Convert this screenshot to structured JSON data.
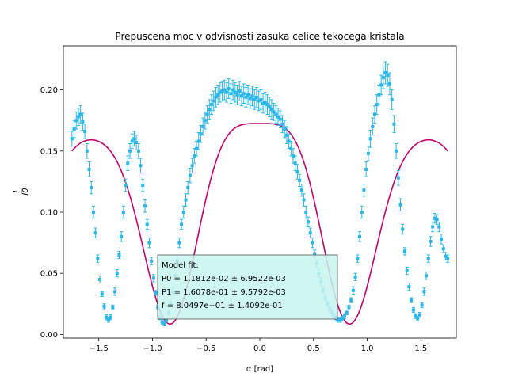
{
  "chart_data": {
    "type": "scatter",
    "title": "Prepuscena moc v odvisnosti zasuka celice tekocega kristala",
    "xlabel": "α [rad]",
    "ylabel_num": "I",
    "ylabel_den": "I0",
    "xlim": [
      -1.83,
      1.83
    ],
    "ylim": [
      -0.003,
      0.236
    ],
    "xticks": [
      -1.5,
      -1.0,
      -0.5,
      0.0,
      0.5,
      1.0,
      1.5
    ],
    "xtick_labels": [
      "−1.5",
      "−1.0",
      "−0.5",
      "0.0",
      "0.5",
      "1.0",
      "1.5"
    ],
    "yticks": [
      0.0,
      0.05,
      0.1,
      0.15,
      0.2
    ],
    "ytick_labels": [
      "0.00",
      "0.05",
      "0.10",
      "0.15",
      "0.20"
    ],
    "grid": false,
    "colors": {
      "data": "#29b6e8",
      "model": "#c2006b",
      "annotation_bg": "#c8f4f0"
    },
    "measurements": {
      "name": "measurements",
      "points": [
        [
          -1.75,
          0.16,
          0.006
        ],
        [
          -1.73,
          0.168,
          0.007
        ],
        [
          -1.71,
          0.175,
          0.007
        ],
        [
          -1.69,
          0.178,
          0.007
        ],
        [
          -1.67,
          0.18,
          0.007
        ],
        [
          -1.65,
          0.174,
          0.007
        ],
        [
          -1.63,
          0.166,
          0.006
        ],
        [
          -1.61,
          0.15,
          0.006
        ],
        [
          -1.59,
          0.135,
          0.006
        ],
        [
          -1.57,
          0.12,
          0.005
        ],
        [
          -1.55,
          0.1,
          0.005
        ],
        [
          -1.53,
          0.083,
          0.004
        ],
        [
          -1.51,
          0.062,
          0.003
        ],
        [
          -1.49,
          0.045,
          0.003
        ],
        [
          -1.47,
          0.033,
          0.002
        ],
        [
          -1.45,
          0.023,
          0.002
        ],
        [
          -1.43,
          0.014,
          0.002
        ],
        [
          -1.41,
          0.012,
          0.002
        ],
        [
          -1.39,
          0.014,
          0.002
        ],
        [
          -1.37,
          0.022,
          0.002
        ],
        [
          -1.35,
          0.035,
          0.003
        ],
        [
          -1.33,
          0.05,
          0.003
        ],
        [
          -1.31,
          0.065,
          0.003
        ],
        [
          -1.29,
          0.08,
          0.004
        ],
        [
          -1.27,
          0.1,
          0.005
        ],
        [
          -1.25,
          0.122,
          0.005
        ],
        [
          -1.23,
          0.14,
          0.006
        ],
        [
          -1.21,
          0.15,
          0.006
        ],
        [
          -1.19,
          0.158,
          0.006
        ],
        [
          -1.17,
          0.16,
          0.006
        ],
        [
          -1.15,
          0.157,
          0.006
        ],
        [
          -1.13,
          0.15,
          0.006
        ],
        [
          -1.11,
          0.138,
          0.006
        ],
        [
          -1.09,
          0.122,
          0.005
        ],
        [
          -1.07,
          0.105,
          0.005
        ],
        [
          -1.05,
          0.09,
          0.004
        ],
        [
          -1.03,
          0.075,
          0.004
        ],
        [
          -1.01,
          0.06,
          0.003
        ],
        [
          -0.99,
          0.046,
          0.003
        ],
        [
          -0.97,
          0.034,
          0.002
        ],
        [
          -0.95,
          0.022,
          0.002
        ],
        [
          -0.93,
          0.014,
          0.002
        ],
        [
          -0.91,
          0.01,
          0.002
        ],
        [
          -0.89,
          0.009,
          0.002
        ],
        [
          -0.87,
          0.012,
          0.002
        ],
        [
          -0.85,
          0.018,
          0.002
        ],
        [
          -0.83,
          0.025,
          0.002
        ],
        [
          -0.81,
          0.035,
          0.003
        ],
        [
          -0.79,
          0.048,
          0.003
        ],
        [
          -0.77,
          0.06,
          0.003
        ],
        [
          -0.75,
          0.075,
          0.004
        ],
        [
          -0.73,
          0.09,
          0.004
        ],
        [
          -0.71,
          0.1,
          0.005
        ],
        [
          -0.69,
          0.11,
          0.005
        ],
        [
          -0.67,
          0.12,
          0.005
        ],
        [
          -0.65,
          0.13,
          0.006
        ],
        [
          -0.63,
          0.138,
          0.006
        ],
        [
          -0.61,
          0.146,
          0.006
        ],
        [
          -0.59,
          0.152,
          0.006
        ],
        [
          -0.57,
          0.158,
          0.007
        ],
        [
          -0.55,
          0.164,
          0.007
        ],
        [
          -0.53,
          0.17,
          0.007
        ],
        [
          -0.51,
          0.175,
          0.007
        ],
        [
          -0.49,
          0.18,
          0.007
        ],
        [
          -0.47,
          0.184,
          0.008
        ],
        [
          -0.45,
          0.188,
          0.008
        ],
        [
          -0.43,
          0.191,
          0.008
        ],
        [
          -0.41,
          0.194,
          0.008
        ],
        [
          -0.39,
          0.196,
          0.008
        ],
        [
          -0.37,
          0.198,
          0.008
        ],
        [
          -0.35,
          0.199,
          0.008
        ],
        [
          -0.33,
          0.2,
          0.008
        ],
        [
          -0.31,
          0.198,
          0.008
        ],
        [
          -0.29,
          0.201,
          0.008
        ],
        [
          -0.27,
          0.197,
          0.008
        ],
        [
          -0.25,
          0.2,
          0.008
        ],
        [
          -0.23,
          0.198,
          0.008
        ],
        [
          -0.21,
          0.196,
          0.008
        ],
        [
          -0.19,
          0.199,
          0.008
        ],
        [
          -0.17,
          0.195,
          0.008
        ],
        [
          -0.15,
          0.197,
          0.008
        ],
        [
          -0.13,
          0.194,
          0.008
        ],
        [
          -0.11,
          0.196,
          0.008
        ],
        [
          -0.09,
          0.193,
          0.008
        ],
        [
          -0.07,
          0.195,
          0.008
        ],
        [
          -0.05,
          0.192,
          0.008
        ],
        [
          -0.03,
          0.194,
          0.008
        ],
        [
          -0.01,
          0.191,
          0.008
        ],
        [
          0.01,
          0.192,
          0.008
        ],
        [
          0.03,
          0.189,
          0.008
        ],
        [
          0.05,
          0.19,
          0.008
        ],
        [
          0.07,
          0.188,
          0.008
        ],
        [
          0.09,
          0.186,
          0.008
        ],
        [
          0.11,
          0.184,
          0.008
        ],
        [
          0.13,
          0.182,
          0.007
        ],
        [
          0.15,
          0.18,
          0.007
        ],
        [
          0.17,
          0.178,
          0.007
        ],
        [
          0.19,
          0.176,
          0.007
        ],
        [
          0.21,
          0.172,
          0.007
        ],
        [
          0.23,
          0.168,
          0.007
        ],
        [
          0.25,
          0.163,
          0.007
        ],
        [
          0.27,
          0.158,
          0.006
        ],
        [
          0.29,
          0.152,
          0.006
        ],
        [
          0.31,
          0.146,
          0.006
        ],
        [
          0.33,
          0.14,
          0.006
        ],
        [
          0.35,
          0.133,
          0.006
        ],
        [
          0.37,
          0.126,
          0.005
        ],
        [
          0.39,
          0.118,
          0.005
        ],
        [
          0.41,
          0.11,
          0.005
        ],
        [
          0.43,
          0.1,
          0.005
        ],
        [
          0.45,
          0.092,
          0.004
        ],
        [
          0.47,
          0.083,
          0.004
        ],
        [
          0.49,
          0.075,
          0.004
        ],
        [
          0.51,
          0.066,
          0.003
        ],
        [
          0.53,
          0.058,
          0.003
        ],
        [
          0.55,
          0.05,
          0.003
        ],
        [
          0.57,
          0.043,
          0.003
        ],
        [
          0.59,
          0.036,
          0.002
        ],
        [
          0.61,
          0.03,
          0.002
        ],
        [
          0.63,
          0.025,
          0.002
        ],
        [
          0.65,
          0.021,
          0.002
        ],
        [
          0.67,
          0.018,
          0.002
        ],
        [
          0.69,
          0.015,
          0.002
        ],
        [
          0.71,
          0.013,
          0.002
        ],
        [
          0.73,
          0.012,
          0.002
        ],
        [
          0.75,
          0.012,
          0.002
        ],
        [
          0.77,
          0.013,
          0.002
        ],
        [
          0.79,
          0.015,
          0.002
        ],
        [
          0.81,
          0.018,
          0.002
        ],
        [
          0.83,
          0.022,
          0.002
        ],
        [
          0.85,
          0.028,
          0.002
        ],
        [
          0.87,
          0.036,
          0.003
        ],
        [
          0.89,
          0.047,
          0.003
        ],
        [
          0.91,
          0.062,
          0.003
        ],
        [
          0.93,
          0.08,
          0.004
        ],
        [
          0.95,
          0.1,
          0.005
        ],
        [
          0.97,
          0.118,
          0.005
        ],
        [
          0.99,
          0.135,
          0.006
        ],
        [
          1.01,
          0.148,
          0.006
        ],
        [
          1.03,
          0.16,
          0.007
        ],
        [
          1.05,
          0.17,
          0.007
        ],
        [
          1.07,
          0.18,
          0.007
        ],
        [
          1.09,
          0.188,
          0.008
        ],
        [
          1.11,
          0.196,
          0.008
        ],
        [
          1.13,
          0.204,
          0.008
        ],
        [
          1.15,
          0.21,
          0.009
        ],
        [
          1.17,
          0.214,
          0.009
        ],
        [
          1.19,
          0.212,
          0.009
        ],
        [
          1.21,
          0.205,
          0.009
        ],
        [
          1.23,
          0.192,
          0.008
        ],
        [
          1.25,
          0.172,
          0.007
        ],
        [
          1.27,
          0.15,
          0.006
        ],
        [
          1.29,
          0.128,
          0.006
        ],
        [
          1.31,
          0.106,
          0.005
        ],
        [
          1.33,
          0.086,
          0.004
        ],
        [
          1.35,
          0.068,
          0.003
        ],
        [
          1.37,
          0.052,
          0.003
        ],
        [
          1.39,
          0.039,
          0.003
        ],
        [
          1.41,
          0.028,
          0.002
        ],
        [
          1.43,
          0.02,
          0.002
        ],
        [
          1.45,
          0.015,
          0.002
        ],
        [
          1.47,
          0.013,
          0.002
        ],
        [
          1.49,
          0.016,
          0.002
        ],
        [
          1.51,
          0.024,
          0.002
        ],
        [
          1.53,
          0.035,
          0.003
        ],
        [
          1.55,
          0.048,
          0.003
        ],
        [
          1.57,
          0.062,
          0.003
        ],
        [
          1.59,
          0.076,
          0.004
        ],
        [
          1.61,
          0.088,
          0.004
        ],
        [
          1.63,
          0.095,
          0.004
        ],
        [
          1.65,
          0.094,
          0.004
        ],
        [
          1.67,
          0.088,
          0.004
        ],
        [
          1.69,
          0.078,
          0.004
        ],
        [
          1.71,
          0.07,
          0.003
        ],
        [
          1.73,
          0.064,
          0.003
        ],
        [
          1.75,
          0.062,
          0.003
        ]
      ]
    },
    "model": {
      "name": "model",
      "P0": 0.011812,
      "P1": 0.16078,
      "f": 80.497,
      "x_range": [
        -1.75,
        1.75
      ]
    },
    "annotation": {
      "lines": [
        "Model fit:",
        "P0 = 1.1812e-02 ± 6.9522e-03",
        "P1 = 1.6078e-01 ± 9.5792e-03",
        "f = 8.0497e+01 ± 1.4092e-01"
      ],
      "placement": "lower-center"
    }
  }
}
